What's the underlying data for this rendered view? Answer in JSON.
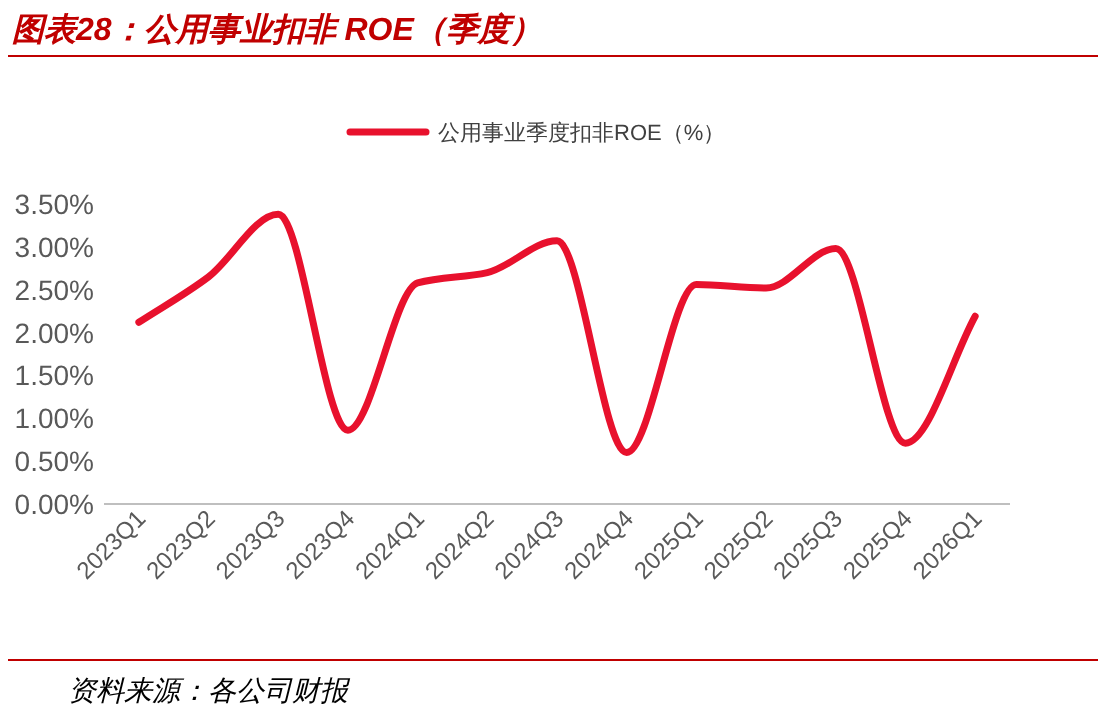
{
  "chart_data": {
    "type": "line",
    "title": "图表28：公用事业扣非 ROE（季度）",
    "categories": [
      "2023Q1",
      "2023Q2",
      "2023Q3",
      "2023Q4",
      "2024Q1",
      "2024Q2",
      "2024Q3",
      "2024Q4",
      "2025Q1",
      "2025Q2",
      "2025Q3",
      "2025Q4",
      "2026Q1"
    ],
    "series": [
      {
        "name": "公用事业季度扣非ROE（%）",
        "color": "#e8112d",
        "values": [
          2.12,
          2.65,
          3.38,
          0.86,
          2.58,
          2.7,
          3.07,
          0.6,
          2.56,
          2.52,
          2.98,
          0.71,
          2.19
        ]
      }
    ],
    "ylim": [
      0,
      3.5
    ],
    "yticks": [
      {
        "value": 0,
        "label": "0.00%"
      },
      {
        "value": 0.5,
        "label": "0.50%"
      },
      {
        "value": 1,
        "label": "1.00%"
      },
      {
        "value": 1.5,
        "label": "1.50%"
      },
      {
        "value": 2,
        "label": "2.00%"
      },
      {
        "value": 2.5,
        "label": "2.50%"
      },
      {
        "value": 3,
        "label": "3.00%"
      },
      {
        "value": 3.5,
        "label": "3.50%"
      }
    ],
    "legend": "top",
    "annotations": [
      "资料来源：各公司财报"
    ]
  }
}
